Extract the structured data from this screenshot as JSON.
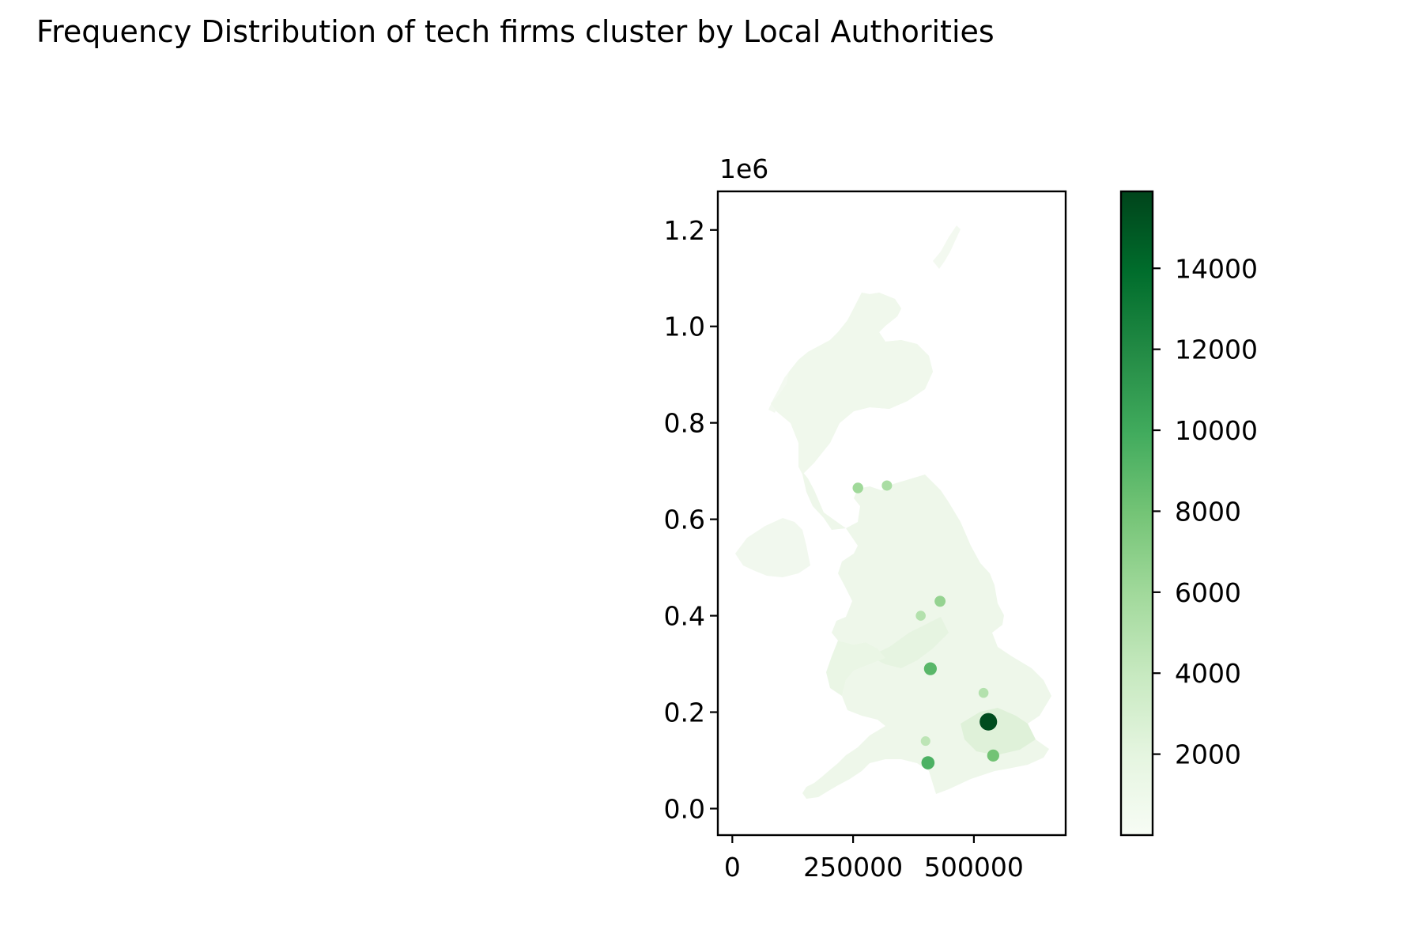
{
  "title": "Frequency Distribution of tech firms cluster by Local Authorities",
  "chart_data": {
    "type": "choropleth",
    "title": "Frequency Distribution of tech firms cluster by Local Authorities",
    "xlabel": "",
    "ylabel": "",
    "x_ticks": [
      {
        "value": 0,
        "label": "0"
      },
      {
        "value": 250000,
        "label": "250000"
      },
      {
        "value": 500000,
        "label": "500000"
      }
    ],
    "y_ticks": [
      {
        "value": 0.0,
        "label": "0.0"
      },
      {
        "value": 0.2,
        "label": "0.2"
      },
      {
        "value": 0.4,
        "label": "0.4"
      },
      {
        "value": 0.6,
        "label": "0.6"
      },
      {
        "value": 0.8,
        "label": "0.8"
      },
      {
        "value": 1.0,
        "label": "1.0"
      },
      {
        "value": 1.2,
        "label": "1.2"
      }
    ],
    "y_offset_label": "1e6",
    "xlim": [
      -30000,
      690000
    ],
    "ylim": [
      -0.055,
      1.28
    ],
    "colormap": {
      "name": "Greens",
      "range": [
        0,
        15900
      ],
      "colors": [
        "#f7fcf5",
        "#e5f5e0",
        "#c7e9c0",
        "#a1d99b",
        "#74c476",
        "#41ab5d",
        "#238b45",
        "#006d2c",
        "#00441b"
      ],
      "ticks": [
        {
          "value": 2000,
          "label": "2000"
        },
        {
          "value": 4000,
          "label": "4000"
        },
        {
          "value": 6000,
          "label": "6000"
        },
        {
          "value": 8000,
          "label": "8000"
        },
        {
          "value": 10000,
          "label": "10000"
        },
        {
          "value": 12000,
          "label": "12000"
        },
        {
          "value": 14000,
          "label": "14000"
        }
      ]
    },
    "hotspots": [
      {
        "x": 530000,
        "y": 0.18,
        "value": 15500
      },
      {
        "x": 410000,
        "y": 0.29,
        "value": 9000
      },
      {
        "x": 430000,
        "y": 0.43,
        "value": 6500
      },
      {
        "x": 390000,
        "y": 0.4,
        "value": 5000
      },
      {
        "x": 405000,
        "y": 0.095,
        "value": 9500
      },
      {
        "x": 540000,
        "y": 0.11,
        "value": 8000
      },
      {
        "x": 260000,
        "y": 0.665,
        "value": 6000
      },
      {
        "x": 320000,
        "y": 0.67,
        "value": 5500
      },
      {
        "x": 520000,
        "y": 0.24,
        "value": 5000
      },
      {
        "x": 400000,
        "y": 0.14,
        "value": 4500
      }
    ]
  }
}
